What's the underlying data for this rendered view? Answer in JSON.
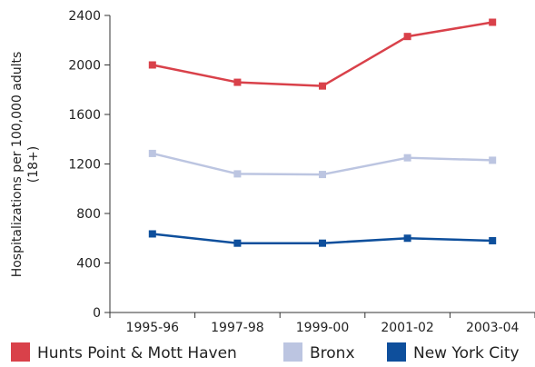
{
  "chart_data": {
    "type": "line",
    "categories": [
      "1995-96",
      "1997-98",
      "1999-00",
      "2001-02",
      "2003-04"
    ],
    "ylabel_line1": "Hospitalizations per 100,000 adults",
    "ylabel_line2": "(18+)",
    "xlabel": "",
    "ylim": [
      0,
      2400
    ],
    "yticks": [
      0,
      400,
      800,
      1200,
      1600,
      2000,
      2400
    ],
    "grid": false,
    "legend_position": "bottom",
    "series": [
      {
        "name": "Hunts Point & Mott Haven",
        "color": "#d9414a",
        "values": [
          2000,
          1860,
          1830,
          2230,
          2345
        ]
      },
      {
        "name": "Bronx",
        "color": "#bcc5e1",
        "values": [
          1285,
          1120,
          1115,
          1250,
          1230
        ]
      },
      {
        "name": "New York City",
        "color": "#0e4f9c",
        "values": [
          635,
          560,
          560,
          600,
          580
        ]
      }
    ]
  }
}
